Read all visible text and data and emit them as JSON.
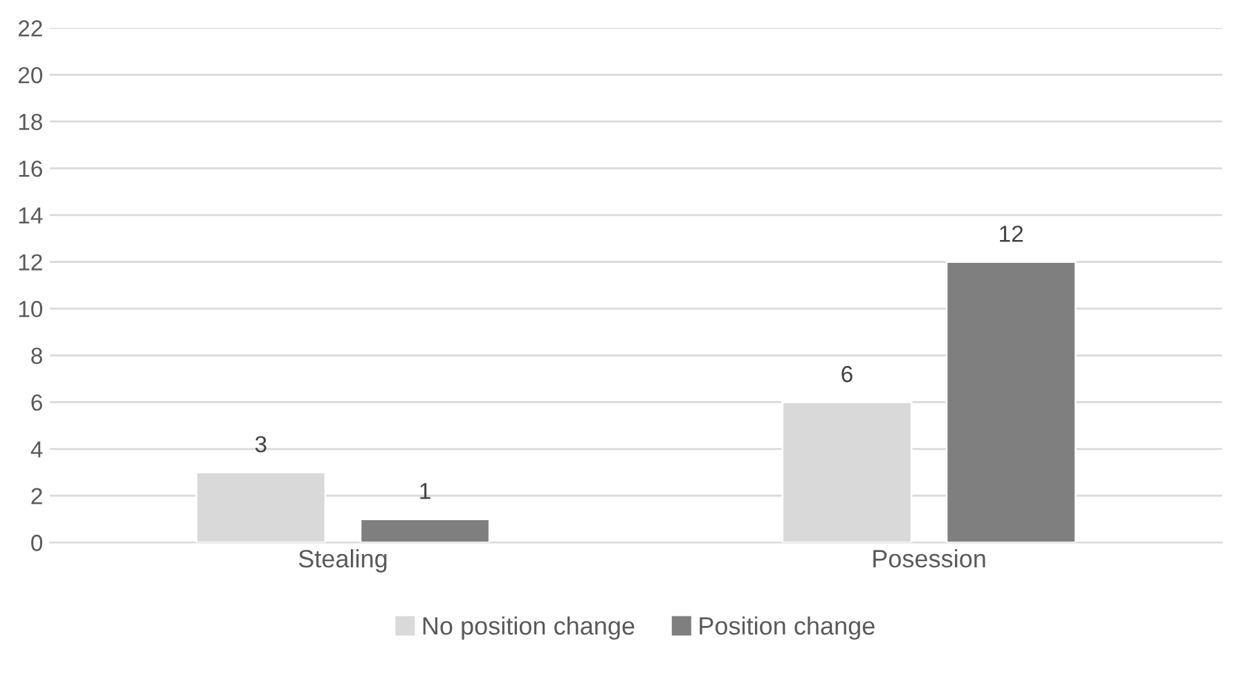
{
  "chart_data": {
    "type": "bar",
    "categories": [
      "Stealing",
      "Posession"
    ],
    "series": [
      {
        "name": "No position change",
        "color": "#d9d9d9",
        "values": [
          3,
          6
        ]
      },
      {
        "name": "Position change",
        "color": "#7f7f7f",
        "values": [
          1,
          12
        ]
      }
    ],
    "ylim": [
      0,
      22
    ],
    "yticks": [
      0,
      2,
      4,
      6,
      8,
      10,
      12,
      14,
      16,
      18,
      20,
      22
    ],
    "grid": "y",
    "legend": "bottom",
    "data_labels": true
  }
}
